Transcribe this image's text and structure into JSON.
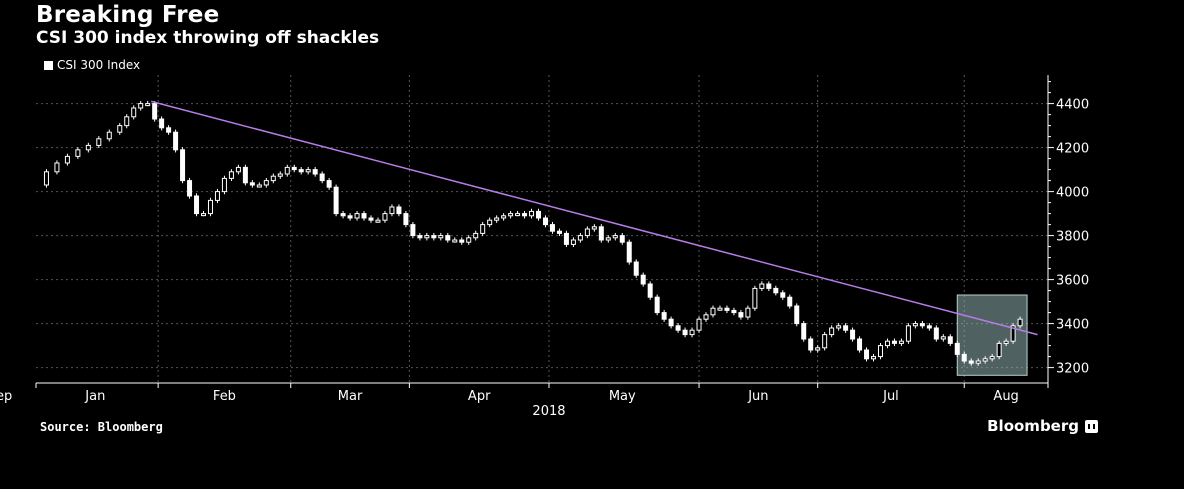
{
  "header": {
    "title": "Breaking Free",
    "subtitle": "CSI 300 index throwing off shackles"
  },
  "footer": {
    "source": "Source: Bloomberg",
    "brand": "Bloomberg"
  },
  "colors": {
    "background": "#000000",
    "candle": "#ffffff",
    "trendline": "#b77ce6",
    "highlight_fill": "#8fb1b1",
    "grid": "#555555"
  },
  "chart_data": {
    "type": "candlestick",
    "title": "Breaking Free",
    "subtitle": "CSI 300 index throwing off shackles",
    "legend": [
      "CSI 300 Index"
    ],
    "legend_position": "top-left",
    "x_year_label": "2018",
    "x_tick_labels": [
      "Jan",
      "Feb",
      "Mar",
      "Apr",
      "May",
      "Jun",
      "Jul",
      "Aug",
      "Sep"
    ],
    "y_ticks": [
      3200,
      3400,
      3600,
      3800,
      4000,
      4200,
      4400
    ],
    "ylim": [
      3130,
      4530
    ],
    "grid": true,
    "series": [
      {
        "name": "CSI 300 Index",
        "close_points": [
          [
            0,
            4030
          ],
          [
            3,
            4090
          ],
          [
            6,
            4130
          ],
          [
            9,
            4160
          ],
          [
            12,
            4190
          ],
          [
            15,
            4210
          ],
          [
            18,
            4240
          ],
          [
            21,
            4270
          ],
          [
            24,
            4300
          ],
          [
            26,
            4340
          ],
          [
            28,
            4380
          ],
          [
            30,
            4400
          ],
          [
            32,
            4400
          ],
          [
            34,
            4330
          ],
          [
            36,
            4290
          ],
          [
            38,
            4270
          ],
          [
            40,
            4190
          ],
          [
            42,
            4050
          ],
          [
            44,
            3980
          ],
          [
            46,
            3900
          ],
          [
            48,
            3900
          ],
          [
            50,
            3960
          ],
          [
            52,
            4000
          ],
          [
            54,
            4060
          ],
          [
            56,
            4090
          ],
          [
            58,
            4110
          ],
          [
            60,
            4040
          ],
          [
            62,
            4030
          ],
          [
            64,
            4030
          ],
          [
            66,
            4050
          ],
          [
            68,
            4070
          ],
          [
            70,
            4080
          ],
          [
            72,
            4110
          ],
          [
            74,
            4100
          ],
          [
            76,
            4090
          ],
          [
            78,
            4100
          ],
          [
            80,
            4080
          ],
          [
            82,
            4050
          ],
          [
            84,
            4020
          ],
          [
            86,
            3900
          ],
          [
            88,
            3890
          ],
          [
            90,
            3880
          ],
          [
            92,
            3900
          ],
          [
            94,
            3880
          ],
          [
            96,
            3870
          ],
          [
            98,
            3870
          ],
          [
            100,
            3900
          ],
          [
            102,
            3930
          ],
          [
            104,
            3900
          ],
          [
            106,
            3850
          ],
          [
            108,
            3800
          ],
          [
            110,
            3790
          ],
          [
            112,
            3800
          ],
          [
            114,
            3790
          ],
          [
            116,
            3800
          ],
          [
            118,
            3780
          ],
          [
            120,
            3780
          ],
          [
            122,
            3770
          ],
          [
            124,
            3790
          ],
          [
            126,
            3810
          ],
          [
            128,
            3850
          ],
          [
            130,
            3870
          ],
          [
            132,
            3880
          ],
          [
            134,
            3890
          ],
          [
            136,
            3900
          ],
          [
            138,
            3900
          ],
          [
            140,
            3890
          ],
          [
            142,
            3910
          ],
          [
            144,
            3880
          ],
          [
            146,
            3850
          ],
          [
            148,
            3820
          ],
          [
            150,
            3810
          ],
          [
            152,
            3760
          ],
          [
            154,
            3780
          ],
          [
            156,
            3800
          ],
          [
            158,
            3830
          ],
          [
            160,
            3840
          ],
          [
            162,
            3780
          ],
          [
            164,
            3790
          ],
          [
            166,
            3800
          ],
          [
            168,
            3770
          ],
          [
            170,
            3680
          ],
          [
            172,
            3620
          ],
          [
            174,
            3580
          ],
          [
            176,
            3520
          ],
          [
            178,
            3450
          ],
          [
            180,
            3420
          ],
          [
            182,
            3390
          ],
          [
            184,
            3370
          ],
          [
            186,
            3350
          ],
          [
            188,
            3370
          ],
          [
            190,
            3420
          ],
          [
            192,
            3440
          ],
          [
            194,
            3470
          ],
          [
            196,
            3470
          ],
          [
            198,
            3460
          ],
          [
            200,
            3450
          ],
          [
            202,
            3430
          ],
          [
            204,
            3470
          ],
          [
            206,
            3560
          ],
          [
            208,
            3580
          ],
          [
            210,
            3560
          ],
          [
            212,
            3540
          ],
          [
            214,
            3520
          ],
          [
            216,
            3480
          ],
          [
            218,
            3400
          ],
          [
            220,
            3330
          ],
          [
            222,
            3280
          ],
          [
            224,
            3290
          ],
          [
            226,
            3350
          ],
          [
            228,
            3380
          ],
          [
            230,
            3390
          ],
          [
            232,
            3370
          ],
          [
            234,
            3330
          ],
          [
            236,
            3280
          ],
          [
            238,
            3240
          ],
          [
            240,
            3250
          ],
          [
            242,
            3300
          ],
          [
            244,
            3320
          ],
          [
            246,
            3310
          ],
          [
            248,
            3320
          ],
          [
            250,
            3390
          ],
          [
            252,
            3400
          ],
          [
            254,
            3390
          ],
          [
            256,
            3380
          ],
          [
            258,
            3330
          ],
          [
            260,
            3340
          ],
          [
            262,
            3310
          ],
          [
            264,
            3260
          ],
          [
            266,
            3230
          ],
          [
            268,
            3220
          ],
          [
            270,
            3230
          ],
          [
            272,
            3240
          ],
          [
            274,
            3250
          ],
          [
            276,
            3310
          ],
          [
            278,
            3320
          ],
          [
            280,
            3390
          ],
          [
            282,
            3420
          ]
        ]
      }
    ],
    "annotations": {
      "trendline": {
        "from": [
          33,
          4410
        ],
        "to": [
          287,
          3350
        ]
      },
      "highlight_box": {
        "x_range": [
          264,
          284
        ],
        "y_range": [
          3165,
          3530
        ]
      }
    }
  }
}
